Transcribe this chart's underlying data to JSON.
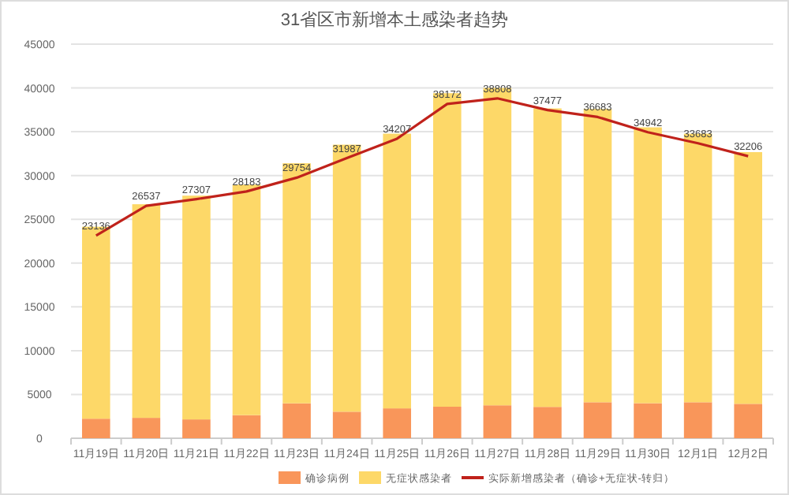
{
  "chart_data": {
    "type": "bar",
    "title": "31省区市新增本土感染者趋势",
    "stacked": true,
    "grid": "y",
    "legend": "bottom",
    "categories": [
      "11月19日",
      "11月20日",
      "11月21日",
      "11月22日",
      "11月23日",
      "11月24日",
      "11月25日",
      "11月26日",
      "11月27日",
      "11月28日",
      "11月29日",
      "11月30日",
      "12月1日",
      "12月2日"
    ],
    "ylim": [
      0,
      45000
    ],
    "yticks": [
      0,
      5000,
      10000,
      15000,
      20000,
      25000,
      30000,
      35000,
      40000,
      45000
    ],
    "series": [
      {
        "name": "确诊病例",
        "color": "#f9965a",
        "values": [
          2230,
          2330,
          2150,
          2640,
          3990,
          3030,
          3410,
          3600,
          3760,
          3580,
          4110,
          4000,
          4110,
          3930
        ]
      },
      {
        "name": "无症状感染者",
        "color": "#fdd868",
        "values": [
          21920,
          24390,
          25550,
          26320,
          27410,
          30490,
          31370,
          35800,
          36240,
          34080,
          33490,
          31500,
          30670,
          28740
        ]
      },
      {
        "name": "实际新增感染者（确诊+无症状-转归）",
        "type": "line",
        "color": "#c0221b",
        "values": [
          23136,
          26537,
          27307,
          28183,
          29754,
          31987,
          34207,
          38172,
          38808,
          37477,
          36683,
          34942,
          33683,
          32206
        ],
        "value_labels": [
          "23136",
          "26537",
          "27307",
          "28183",
          "29754",
          "31987",
          "34207",
          "38172",
          "38808",
          "37477",
          "36683",
          "34942",
          "33683",
          "32206"
        ]
      }
    ]
  }
}
